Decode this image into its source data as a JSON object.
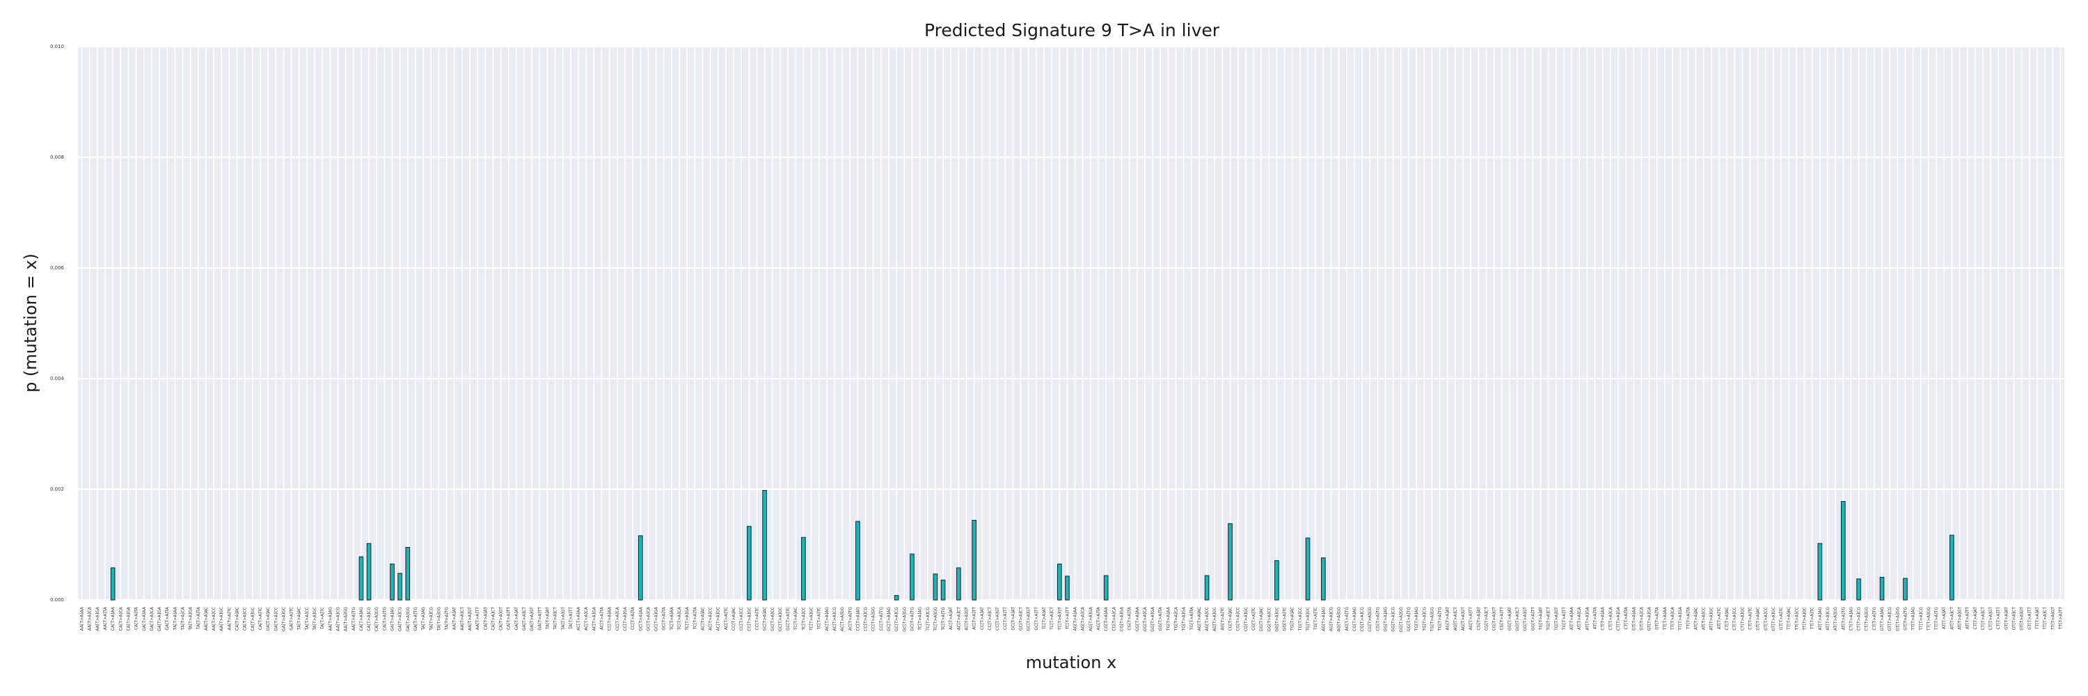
{
  "chart_data": {
    "type": "bar",
    "title": "Predicted Signature 9 T>A in liver",
    "xlabel": "mutation x",
    "ylabel": "p (mutation = x)",
    "ylim": [
      0,
      0.01
    ],
    "yticks": [
      "0.000",
      "0.002",
      "0.004",
      "0.006",
      "0.008",
      "0.010"
    ],
    "grid": true,
    "bar_color": "#1ab7bc",
    "background_color": "#eaeaf2",
    "categories": [
      "AA[T>A]AA",
      "AA[T>A]CA",
      "AA[T>A]GA",
      "AA[T>A]TA",
      "CA[T>A]AA",
      "CA[T>A]CA",
      "CA[T>A]GA",
      "CA[T>A]TA",
      "GA[T>A]AA",
      "GA[T>A]CA",
      "GA[T>A]GA",
      "GA[T>A]TA",
      "TA[T>A]AA",
      "TA[T>A]CA",
      "TA[T>A]GA",
      "TA[T>A]TA",
      "AA[T>A]AC",
      "AA[T>A]CC",
      "AA[T>A]GC",
      "AA[T>A]TC",
      "CA[T>A]AC",
      "CA[T>A]CC",
      "CA[T>A]GC",
      "CA[T>A]TC",
      "GA[T>A]AC",
      "GA[T>A]CC",
      "GA[T>A]GC",
      "GA[T>A]TC",
      "TA[T>A]AC",
      "TA[T>A]CC",
      "TA[T>A]GC",
      "TA[T>A]TC",
      "AA[T>A]AG",
      "AA[T>A]CG",
      "AA[T>A]GG",
      "AA[T>A]TG",
      "CA[T>A]AG",
      "CA[T>A]CG",
      "CA[T>A]GG",
      "CA[T>A]TG",
      "GA[T>A]AG",
      "GA[T>A]CG",
      "GA[T>A]GG",
      "GA[T>A]TG",
      "TA[T>A]AG",
      "TA[T>A]CG",
      "TA[T>A]GG",
      "TA[T>A]TG",
      "AA[T>A]AT",
      "AA[T>A]CT",
      "AA[T>A]GT",
      "AA[T>A]TT",
      "CA[T>A]AT",
      "CA[T>A]CT",
      "CA[T>A]GT",
      "CA[T>A]TT",
      "GA[T>A]AT",
      "GA[T>A]CT",
      "GA[T>A]GT",
      "GA[T>A]TT",
      "TA[T>A]AT",
      "TA[T>A]CT",
      "TA[T>A]GT",
      "TA[T>A]TT",
      "AC[T>A]AA",
      "AC[T>A]CA",
      "AC[T>A]GA",
      "AC[T>A]TA",
      "CC[T>A]AA",
      "CC[T>A]CA",
      "CC[T>A]GA",
      "CC[T>A]TA",
      "GC[T>A]AA",
      "GC[T>A]CA",
      "GC[T>A]GA",
      "GC[T>A]TA",
      "TC[T>A]AA",
      "TC[T>A]CA",
      "TC[T>A]GA",
      "TC[T>A]TA",
      "AC[T>A]AC",
      "AC[T>A]CC",
      "AC[T>A]GC",
      "AC[T>A]TC",
      "CC[T>A]AC",
      "CC[T>A]CC",
      "CC[T>A]GC",
      "CC[T>A]TC",
      "GC[T>A]AC",
      "GC[T>A]CC",
      "GC[T>A]GC",
      "GC[T>A]TC",
      "TC[T>A]AC",
      "TC[T>A]CC",
      "TC[T>A]GC",
      "TC[T>A]TC",
      "AC[T>A]AG",
      "AC[T>A]CG",
      "AC[T>A]GG",
      "AC[T>A]TG",
      "CC[T>A]AG",
      "CC[T>A]CG",
      "CC[T>A]GG",
      "CC[T>A]TG",
      "GC[T>A]AG",
      "GC[T>A]CG",
      "GC[T>A]GG",
      "GC[T>A]TG",
      "TC[T>A]AG",
      "TC[T>A]CG",
      "TC[T>A]GG",
      "TC[T>A]TG",
      "AC[T>A]AT",
      "AC[T>A]CT",
      "AC[T>A]GT",
      "AC[T>A]TT",
      "CC[T>A]AT",
      "CC[T>A]CT",
      "CC[T>A]GT",
      "CC[T>A]TT",
      "GC[T>A]AT",
      "GC[T>A]CT",
      "GC[T>A]GT",
      "GC[T>A]TT",
      "TC[T>A]AT",
      "TC[T>A]CT",
      "TC[T>A]GT",
      "TC[T>A]TT",
      "AG[T>A]AA",
      "AG[T>A]CA",
      "AG[T>A]GA",
      "AG[T>A]TA",
      "CG[T>A]AA",
      "CG[T>A]CA",
      "CG[T>A]GA",
      "CG[T>A]TA",
      "GG[T>A]AA",
      "GG[T>A]CA",
      "GG[T>A]GA",
      "GG[T>A]TA",
      "TG[T>A]AA",
      "TG[T>A]CA",
      "TG[T>A]GA",
      "TG[T>A]TA",
      "AG[T>A]AC",
      "AG[T>A]CC",
      "AG[T>A]GC",
      "AG[T>A]TC",
      "CG[T>A]AC",
      "CG[T>A]CC",
      "CG[T>A]GC",
      "CG[T>A]TC",
      "GG[T>A]AC",
      "GG[T>A]CC",
      "GG[T>A]GC",
      "GG[T>A]TC",
      "TG[T>A]AC",
      "TG[T>A]CC",
      "TG[T>A]GC",
      "TG[T>A]TC",
      "AG[T>A]AG",
      "AG[T>A]CG",
      "AG[T>A]GG",
      "AG[T>A]TG",
      "CG[T>A]AG",
      "CG[T>A]CG",
      "CG[T>A]GG",
      "CG[T>A]TG",
      "GG[T>A]AG",
      "GG[T>A]CG",
      "GG[T>A]GG",
      "GG[T>A]TG",
      "TG[T>A]AG",
      "TG[T>A]CG",
      "TG[T>A]GG",
      "TG[T>A]TG",
      "AG[T>A]AT",
      "AG[T>A]CT",
      "AG[T>A]GT",
      "AG[T>A]TT",
      "CG[T>A]AT",
      "CG[T>A]CT",
      "CG[T>A]GT",
      "CG[T>A]TT",
      "GG[T>A]AT",
      "GG[T>A]CT",
      "GG[T>A]GT",
      "GG[T>A]TT",
      "TG[T>A]AT",
      "TG[T>A]CT",
      "TG[T>A]GT",
      "TG[T>A]TT",
      "AT[T>A]AA",
      "AT[T>A]CA",
      "AT[T>A]GA",
      "AT[T>A]TA",
      "CT[T>A]AA",
      "CT[T>A]CA",
      "CT[T>A]GA",
      "CT[T>A]TA",
      "GT[T>A]AA",
      "GT[T>A]CA",
      "GT[T>A]GA",
      "GT[T>A]TA",
      "TT[T>A]AA",
      "TT[T>A]CA",
      "TT[T>A]GA",
      "TT[T>A]TA",
      "AT[T>A]AC",
      "AT[T>A]CC",
      "AT[T>A]GC",
      "AT[T>A]TC",
      "CT[T>A]AC",
      "CT[T>A]CC",
      "CT[T>A]GC",
      "CT[T>A]TC",
      "GT[T>A]AC",
      "GT[T>A]CC",
      "GT[T>A]GC",
      "GT[T>A]TC",
      "TT[T>A]AC",
      "TT[T>A]CC",
      "TT[T>A]GC",
      "TT[T>A]TC",
      "AT[T>A]AG",
      "AT[T>A]CG",
      "AT[T>A]GG",
      "AT[T>A]TG",
      "CT[T>A]AG",
      "CT[T>A]CG",
      "CT[T>A]GG",
      "CT[T>A]TG",
      "GT[T>A]AG",
      "GT[T>A]CG",
      "GT[T>A]GG",
      "GT[T>A]TG",
      "TT[T>A]AG",
      "TT[T>A]CG",
      "TT[T>A]GG",
      "TT[T>A]TG",
      "AT[T>A]AT",
      "AT[T>A]CT",
      "AT[T>A]GT",
      "AT[T>A]TT",
      "CT[T>A]AT",
      "CT[T>A]CT",
      "CT[T>A]GT",
      "CT[T>A]TT",
      "GT[T>A]AT",
      "GT[T>A]CT",
      "GT[T>A]GT",
      "GT[T>A]TT",
      "TT[T>A]AT",
      "TT[T>A]CT",
      "TT[T>A]GT",
      "TT[T>A]TT"
    ],
    "values": [
      0,
      0,
      0,
      0,
      0.00058,
      0,
      0,
      0,
      0,
      0,
      0,
      0,
      0,
      0,
      0,
      0,
      0,
      0,
      0,
      0,
      0,
      0,
      0,
      0,
      0,
      0,
      0,
      0,
      0,
      0,
      0,
      0,
      0,
      0,
      0,
      0,
      0.00078,
      0.00102,
      0,
      0,
      0.00065,
      0.00048,
      0.00095,
      0,
      0,
      0,
      0,
      0,
      0,
      0,
      0,
      0,
      0,
      0,
      0,
      0,
      0,
      0,
      0,
      0,
      0,
      0,
      0,
      0,
      0,
      0,
      0,
      0,
      0,
      0,
      0,
      0,
      0.00116,
      0,
      0,
      0,
      0,
      0,
      0,
      0,
      0,
      0,
      0,
      0,
      0,
      0,
      0.00133,
      0,
      0.00198,
      0,
      0,
      0,
      0,
      0.00113,
      0,
      0,
      0,
      0,
      0,
      0,
      0.00142,
      0,
      0,
      0,
      0,
      8e-05,
      0,
      0.00083,
      0,
      0,
      0.00047,
      0.00036,
      0,
      0.00058,
      0,
      0.00144,
      0,
      0,
      0,
      0,
      0,
      0,
      0,
      0,
      0,
      0,
      0.00065,
      0.00043,
      0,
      0,
      0,
      0,
      0.00044,
      0,
      0,
      0,
      0,
      0,
      0,
      0,
      0,
      0,
      0,
      0,
      0,
      0.00044,
      0,
      0,
      0.00138,
      0,
      0,
      0,
      0,
      0,
      0.00071,
      0,
      0,
      0,
      0.00112,
      0,
      0.00076,
      0,
      0,
      0,
      0,
      0,
      0,
      0,
      0,
      0,
      0,
      0,
      0,
      0,
      0,
      0,
      0,
      0,
      0,
      0,
      0,
      0,
      0,
      0,
      0,
      0,
      0,
      0,
      0,
      0,
      0,
      0,
      0,
      0,
      0,
      0,
      0,
      0,
      0,
      0,
      0,
      0,
      0,
      0,
      0,
      0,
      0,
      0,
      0,
      0,
      0,
      0,
      0,
      0,
      0,
      0,
      0,
      0,
      0,
      0,
      0,
      0,
      0,
      0,
      0.00102,
      0,
      0,
      0.00178,
      0,
      0.00038,
      0,
      0,
      0.00041,
      0,
      0,
      0.00039,
      0,
      0,
      0,
      0,
      0,
      0.00117,
      0,
      0,
      0,
      0,
      0,
      0,
      0,
      0,
      0,
      0,
      0,
      0,
      0,
      0
    ]
  }
}
